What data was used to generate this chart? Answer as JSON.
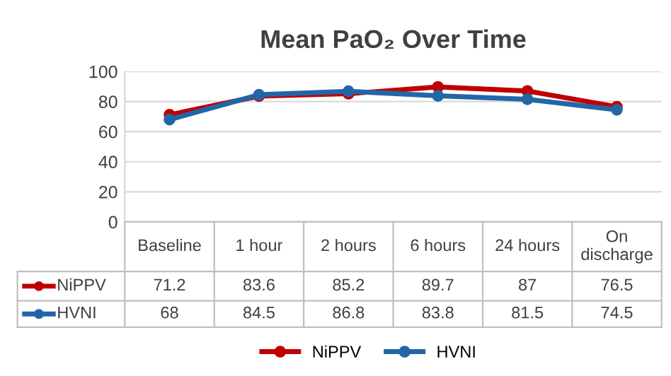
{
  "chart_data": {
    "type": "line",
    "title": "Mean PaO₂ Over Time",
    "categories": [
      "Baseline",
      "1 hour",
      "2 hours",
      "6 hours",
      "24 hours",
      "On\ndischarge"
    ],
    "series": [
      {
        "name": "NiPPV",
        "color": "#c00000",
        "values": [
          71.2,
          83.6,
          85.2,
          89.7,
          87,
          76.5
        ]
      },
      {
        "name": "HVNI",
        "color": "#2266a8",
        "values": [
          68,
          84.5,
          86.8,
          83.8,
          81.5,
          74.5
        ]
      }
    ],
    "ylim": [
      0,
      100
    ],
    "yticks": [
      0,
      20,
      40,
      60,
      80,
      100
    ],
    "grid": "y",
    "legend": "bottom",
    "marker": "circle",
    "line_style": "solid",
    "data_labels": true
  }
}
